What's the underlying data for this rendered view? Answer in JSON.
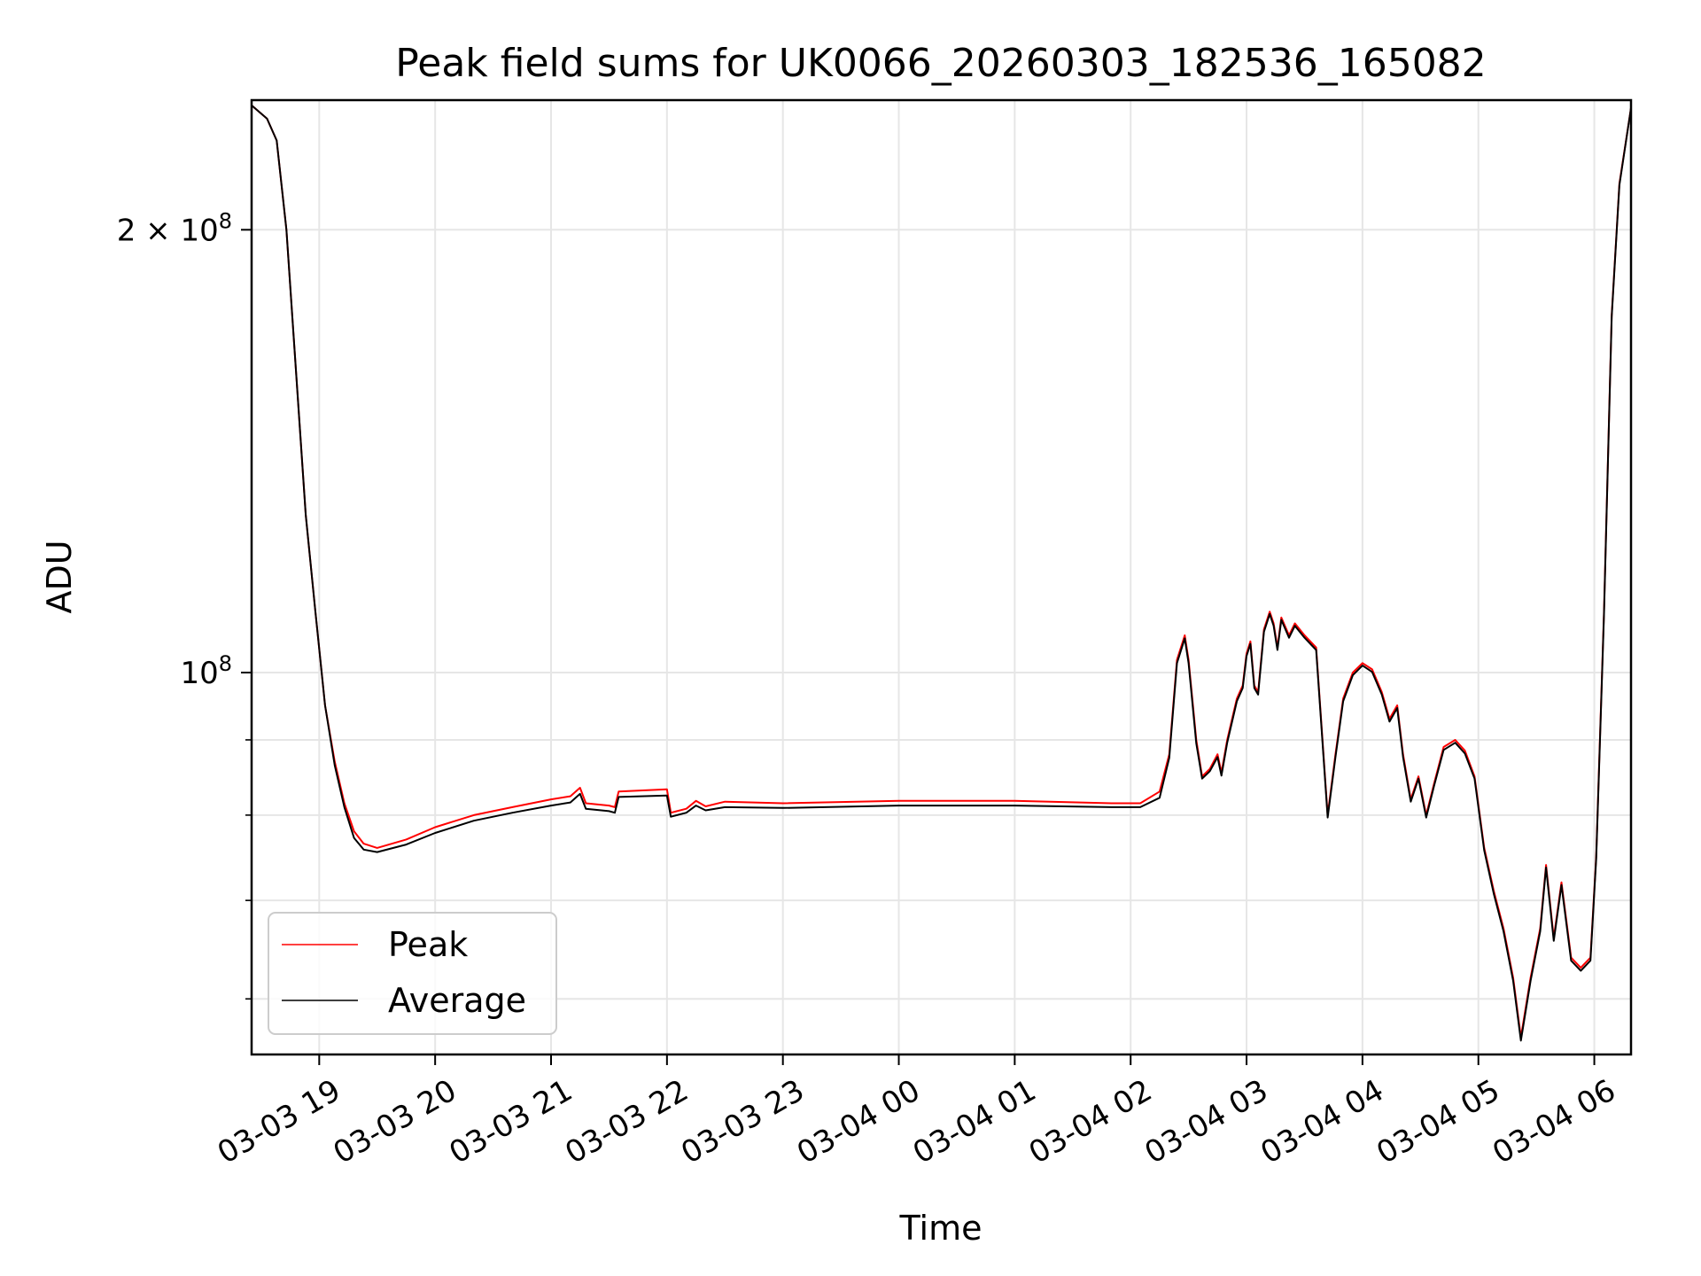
{
  "chart_data": {
    "type": "line",
    "title": "Peak field sums for UK0066_20260303_182536_165082",
    "xlabel": "Time",
    "ylabel": "ADU",
    "y_scale": "log",
    "ylim": [
      55000000,
      245000000
    ],
    "xlim": [
      "03-03 18:25",
      "03-04 06:19"
    ],
    "grid": true,
    "legend_position": "lower-left",
    "x_ticks": [
      "03-03 19",
      "03-03 20",
      "03-03 21",
      "03-03 22",
      "03-03 23",
      "03-04 00",
      "03-04 01",
      "03-04 02",
      "03-04 03",
      "03-04 04",
      "03-04 05",
      "03-04 06"
    ],
    "y_major_ticks": [
      {
        "value": 100000000,
        "mantissa": "",
        "exponent": "8"
      },
      {
        "value": 200000000,
        "mantissa": "2",
        "exponent": "8"
      }
    ],
    "y_minor_ticks": [
      60000000,
      70000000,
      80000000,
      90000000
    ],
    "series": [
      {
        "name": "Peak",
        "color": "#ff0000",
        "points": [
          [
            "03-03 18:25",
            243000000
          ],
          [
            "03-03 18:33",
            238000000
          ],
          [
            "03-03 18:38",
            230000000
          ],
          [
            "03-03 18:43",
            200000000
          ],
          [
            "03-03 18:48",
            160000000
          ],
          [
            "03-03 18:53",
            128000000
          ],
          [
            "03-03 18:58",
            110000000
          ],
          [
            "03-03 19:03",
            95000000
          ],
          [
            "03-03 19:08",
            87000000
          ],
          [
            "03-03 19:13",
            81500000
          ],
          [
            "03-03 19:18",
            78000000
          ],
          [
            "03-03 19:23",
            76500000
          ],
          [
            "03-03 19:30",
            76000000
          ],
          [
            "03-03 19:45",
            77000000
          ],
          [
            "03-03 20:00",
            78500000
          ],
          [
            "03-03 20:20",
            80000000
          ],
          [
            "03-03 20:40",
            81000000
          ],
          [
            "03-03 21:00",
            82000000
          ],
          [
            "03-03 21:10",
            82400000
          ],
          [
            "03-03 21:15",
            83500000
          ],
          [
            "03-03 21:18",
            81500000
          ],
          [
            "03-03 21:30",
            81200000
          ],
          [
            "03-03 21:33",
            81000000
          ],
          [
            "03-03 21:35",
            83000000
          ],
          [
            "03-03 22:00",
            83300000
          ],
          [
            "03-03 22:02",
            80300000
          ],
          [
            "03-03 22:10",
            80800000
          ],
          [
            "03-03 22:15",
            81800000
          ],
          [
            "03-03 22:20",
            81100000
          ],
          [
            "03-03 22:30",
            81700000
          ],
          [
            "03-03 23:00",
            81500000
          ],
          [
            "03-04 00:00",
            81800000
          ],
          [
            "03-04 01:00",
            81800000
          ],
          [
            "03-04 01:50",
            81500000
          ],
          [
            "03-04 02:05",
            81500000
          ],
          [
            "03-04 02:15",
            83000000
          ],
          [
            "03-04 02:20",
            88000000
          ],
          [
            "03-04 02:24",
            102000000
          ],
          [
            "03-04 02:28",
            106000000
          ],
          [
            "03-04 02:30",
            102000000
          ],
          [
            "03-04 02:34",
            90000000
          ],
          [
            "03-04 02:37",
            85000000
          ],
          [
            "03-04 02:41",
            86000000
          ],
          [
            "03-04 02:45",
            88000000
          ],
          [
            "03-04 02:47",
            85500000
          ],
          [
            "03-04 02:50",
            90000000
          ],
          [
            "03-04 02:55",
            96000000
          ],
          [
            "03-04 02:58",
            98000000
          ],
          [
            "03-04 03:00",
            103000000
          ],
          [
            "03-04 03:02",
            105000000
          ],
          [
            "03-04 03:04",
            98000000
          ],
          [
            "03-04 03:06",
            97000000
          ],
          [
            "03-04 03:09",
            107000000
          ],
          [
            "03-04 03:12",
            110000000
          ],
          [
            "03-04 03:14",
            108000000
          ],
          [
            "03-04 03:16",
            104000000
          ],
          [
            "03-04 03:18",
            109000000
          ],
          [
            "03-04 03:22",
            106000000
          ],
          [
            "03-04 03:25",
            108000000
          ],
          [
            "03-04 03:30",
            106000000
          ],
          [
            "03-04 03:36",
            104000000
          ],
          [
            "03-04 03:42",
            80000000
          ],
          [
            "03-04 03:46",
            88000000
          ],
          [
            "03-04 03:50",
            96000000
          ],
          [
            "03-04 03:55",
            100000000
          ],
          [
            "03-04 04:00",
            101500000
          ],
          [
            "03-04 04:05",
            100500000
          ],
          [
            "03-04 04:10",
            97000000
          ],
          [
            "03-04 04:14",
            93000000
          ],
          [
            "03-04 04:18",
            95000000
          ],
          [
            "03-04 04:21",
            88000000
          ],
          [
            "03-04 04:25",
            82000000
          ],
          [
            "03-04 04:29",
            85000000
          ],
          [
            "03-04 04:33",
            80000000
          ],
          [
            "03-04 04:37",
            84000000
          ],
          [
            "03-04 04:42",
            89000000
          ],
          [
            "03-04 04:48",
            90000000
          ],
          [
            "03-04 04:53",
            88500000
          ],
          [
            "03-04 04:58",
            85000000
          ],
          [
            "03-04 05:03",
            76000000
          ],
          [
            "03-04 05:08",
            71000000
          ],
          [
            "03-04 05:13",
            67000000
          ],
          [
            "03-04 05:18",
            62000000
          ],
          [
            "03-04 05:22",
            56500000
          ],
          [
            "03-04 05:27",
            62000000
          ],
          [
            "03-04 05:32",
            67000000
          ],
          [
            "03-04 05:35",
            74000000
          ],
          [
            "03-04 05:39",
            66000000
          ],
          [
            "03-04 05:43",
            72000000
          ],
          [
            "03-04 05:48",
            64000000
          ],
          [
            "03-04 05:53",
            63000000
          ],
          [
            "03-04 05:58",
            64000000
          ],
          [
            "03-04 06:01",
            75000000
          ],
          [
            "03-04 06:05",
            110000000
          ],
          [
            "03-04 06:09",
            175000000
          ],
          [
            "03-04 06:13",
            215000000
          ],
          [
            "03-04 06:19",
            242000000
          ]
        ]
      },
      {
        "name": "Average",
        "color": "#000000",
        "points": [
          [
            "03-03 18:25",
            243000000
          ],
          [
            "03-03 18:33",
            238000000
          ],
          [
            "03-03 18:38",
            230000000
          ],
          [
            "03-03 18:43",
            200000000
          ],
          [
            "03-03 18:48",
            160000000
          ],
          [
            "03-03 18:53",
            128000000
          ],
          [
            "03-03 18:58",
            110000000
          ],
          [
            "03-03 19:03",
            95000000
          ],
          [
            "03-03 19:08",
            86500000
          ],
          [
            "03-03 19:13",
            81000000
          ],
          [
            "03-03 19:18",
            77200000
          ],
          [
            "03-03 19:23",
            75800000
          ],
          [
            "03-03 19:30",
            75500000
          ],
          [
            "03-03 19:45",
            76400000
          ],
          [
            "03-03 20:00",
            77800000
          ],
          [
            "03-03 20:20",
            79300000
          ],
          [
            "03-03 20:40",
            80300000
          ],
          [
            "03-03 21:00",
            81200000
          ],
          [
            "03-03 21:10",
            81600000
          ],
          [
            "03-03 21:15",
            82700000
          ],
          [
            "03-03 21:18",
            80800000
          ],
          [
            "03-03 21:30",
            80500000
          ],
          [
            "03-03 21:33",
            80300000
          ],
          [
            "03-03 21:35",
            82300000
          ],
          [
            "03-03 22:00",
            82500000
          ],
          [
            "03-03 22:02",
            79800000
          ],
          [
            "03-03 22:10",
            80300000
          ],
          [
            "03-03 22:15",
            81200000
          ],
          [
            "03-03 22:20",
            80600000
          ],
          [
            "03-03 22:30",
            81000000
          ],
          [
            "03-03 23:00",
            80900000
          ],
          [
            "03-04 00:00",
            81200000
          ],
          [
            "03-04 01:00",
            81200000
          ],
          [
            "03-04 01:50",
            81000000
          ],
          [
            "03-04 02:05",
            81000000
          ],
          [
            "03-04 02:15",
            82200000
          ],
          [
            "03-04 02:20",
            87500000
          ],
          [
            "03-04 02:24",
            101500000
          ],
          [
            "03-04 02:28",
            105500000
          ],
          [
            "03-04 02:30",
            101500000
          ],
          [
            "03-04 02:34",
            89500000
          ],
          [
            "03-04 02:37",
            84700000
          ],
          [
            "03-04 02:41",
            85700000
          ],
          [
            "03-04 02:45",
            87600000
          ],
          [
            "03-04 02:47",
            85100000
          ],
          [
            "03-04 02:50",
            89600000
          ],
          [
            "03-04 02:55",
            95600000
          ],
          [
            "03-04 02:58",
            97600000
          ],
          [
            "03-04 03:00",
            102600000
          ],
          [
            "03-04 03:02",
            104600000
          ],
          [
            "03-04 03:04",
            97600000
          ],
          [
            "03-04 03:06",
            96600000
          ],
          [
            "03-04 03:09",
            106600000
          ],
          [
            "03-04 03:12",
            109600000
          ],
          [
            "03-04 03:14",
            107600000
          ],
          [
            "03-04 03:16",
            103600000
          ],
          [
            "03-04 03:18",
            108600000
          ],
          [
            "03-04 03:22",
            105600000
          ],
          [
            "03-04 03:25",
            107600000
          ],
          [
            "03-04 03:30",
            105600000
          ],
          [
            "03-04 03:36",
            103600000
          ],
          [
            "03-04 03:42",
            79700000
          ],
          [
            "03-04 03:46",
            87600000
          ],
          [
            "03-04 03:50",
            95600000
          ],
          [
            "03-04 03:55",
            99600000
          ],
          [
            "03-04 04:00",
            101100000
          ],
          [
            "03-04 04:05",
            100100000
          ],
          [
            "03-04 04:10",
            96600000
          ],
          [
            "03-04 04:14",
            92600000
          ],
          [
            "03-04 04:18",
            94600000
          ],
          [
            "03-04 04:21",
            87600000
          ],
          [
            "03-04 04:25",
            81700000
          ],
          [
            "03-04 04:29",
            84700000
          ],
          [
            "03-04 04:33",
            79700000
          ],
          [
            "03-04 04:37",
            83700000
          ],
          [
            "03-04 04:42",
            88600000
          ],
          [
            "03-04 04:48",
            89600000
          ],
          [
            "03-04 04:53",
            88100000
          ],
          [
            "03-04 04:58",
            84700000
          ],
          [
            "03-04 05:03",
            75700000
          ],
          [
            "03-04 05:08",
            70700000
          ],
          [
            "03-04 05:13",
            66700000
          ],
          [
            "03-04 05:18",
            61700000
          ],
          [
            "03-04 05:22",
            56200000
          ],
          [
            "03-04 05:27",
            61700000
          ],
          [
            "03-04 05:32",
            66700000
          ],
          [
            "03-04 05:35",
            73700000
          ],
          [
            "03-04 05:39",
            65700000
          ],
          [
            "03-04 05:43",
            71700000
          ],
          [
            "03-04 05:48",
            63700000
          ],
          [
            "03-04 05:53",
            62700000
          ],
          [
            "03-04 05:58",
            63700000
          ],
          [
            "03-04 06:01",
            74700000
          ],
          [
            "03-04 06:05",
            109500000
          ],
          [
            "03-04 06:09",
            174500000
          ],
          [
            "03-04 06:13",
            214500000
          ],
          [
            "03-04 06:19",
            242000000
          ]
        ]
      }
    ]
  }
}
